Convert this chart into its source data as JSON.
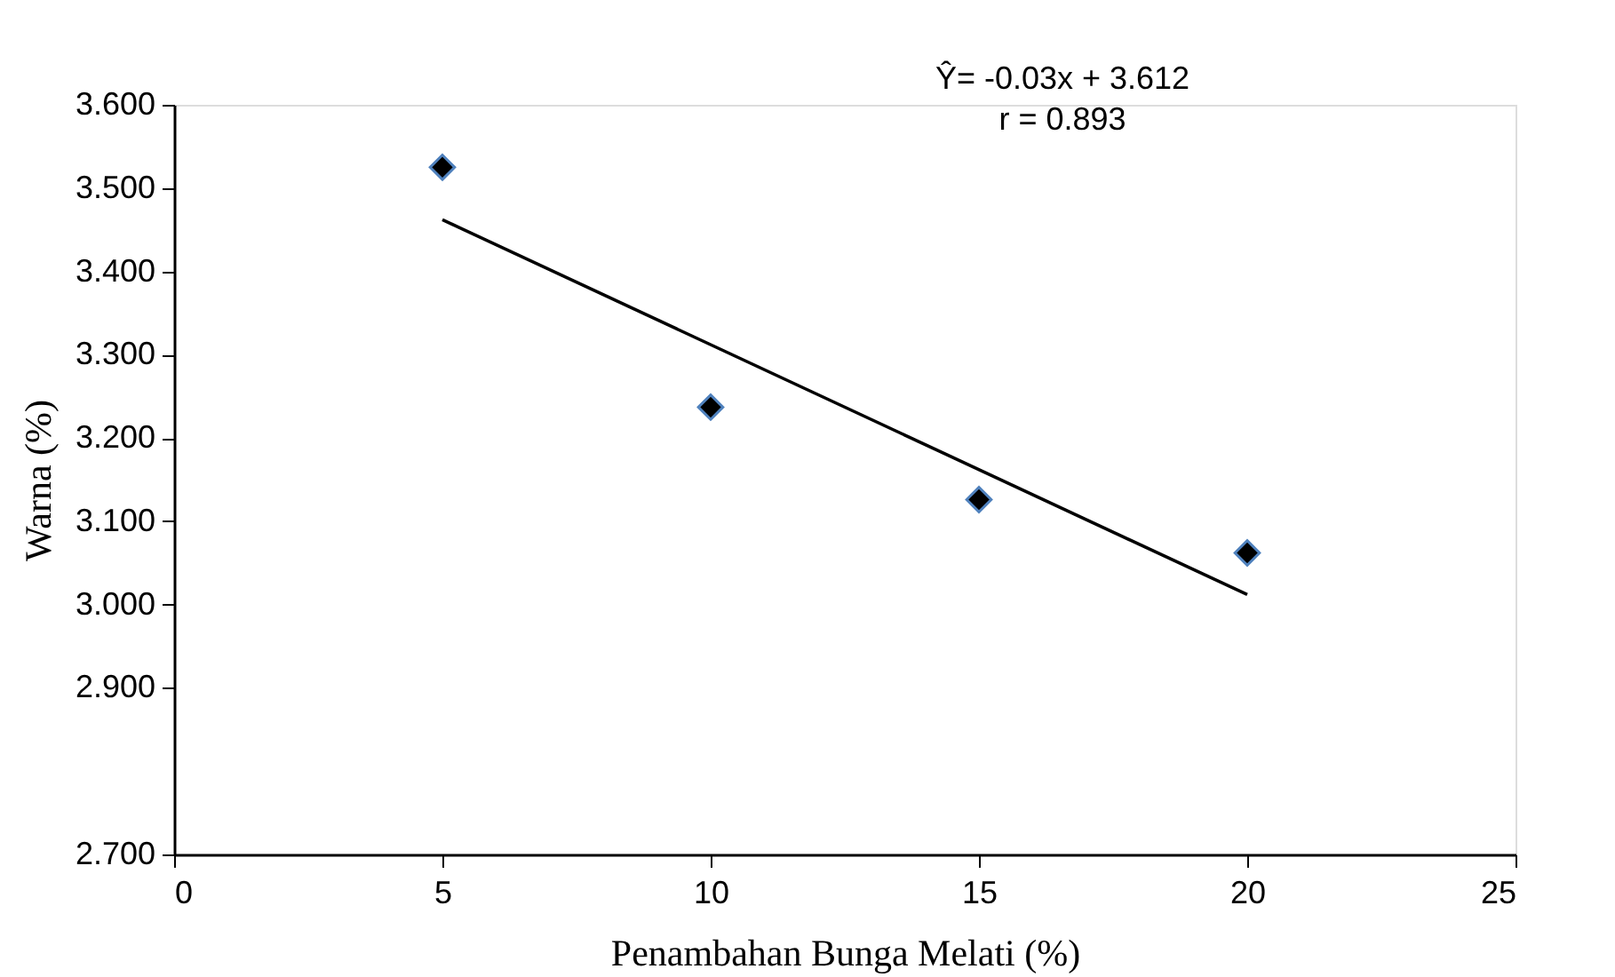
{
  "chart_data": {
    "type": "scatter",
    "xlabel": "Penambahan Bunga Melati (%)",
    "ylabel": "Warna (%)",
    "annotations": [
      "Ŷ= -0.03x + 3.612",
      "r = 0.893"
    ],
    "series": [
      {
        "color": "#000000",
        "x": [
          5,
          10,
          15,
          20
        ],
        "values": [
          3.525,
          3.237,
          3.126,
          3.062
        ],
        "marker": "diamond"
      },
      {
        "type": "line",
        "color": "#000000",
        "x": [
          5,
          20
        ],
        "values": [
          3.462,
          3.012
        ],
        "line_style": "solid"
      }
    ],
    "xlim": [
      0,
      25
    ],
    "xticks": [
      0,
      5,
      10,
      15,
      20,
      25
    ],
    "ylim": [
      2.7,
      3.6
    ],
    "yticks": [
      {
        "value": 2.7,
        "label": "2.700"
      },
      {
        "value": 2.9,
        "label": "2.900"
      },
      {
        "value": 3.0,
        "label": "3.000"
      },
      {
        "value": 3.1,
        "label": "3.100"
      },
      {
        "value": 3.2,
        "label": "3.200"
      },
      {
        "value": 3.3,
        "label": "3.300"
      },
      {
        "value": 3.4,
        "label": "3.400"
      },
      {
        "value": 3.5,
        "label": "3.500"
      },
      {
        "value": 3.6,
        "label": "3.600"
      }
    ],
    "grid": false
  }
}
